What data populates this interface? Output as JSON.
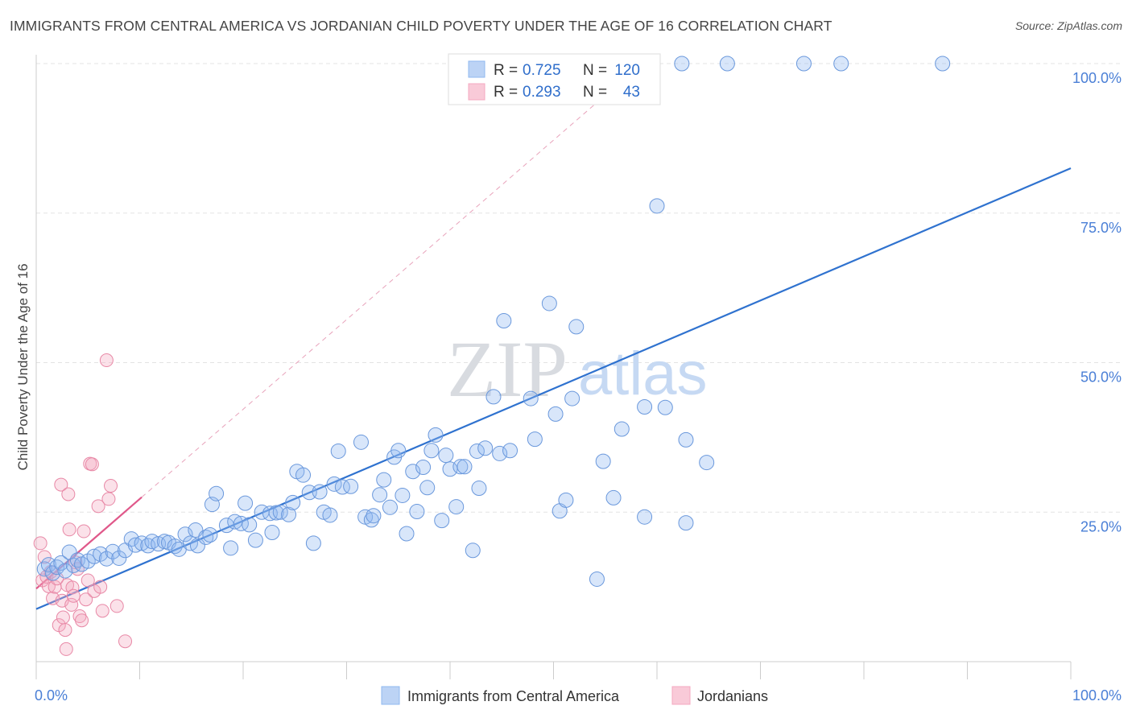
{
  "title": "IMMIGRANTS FROM CENTRAL AMERICA VS JORDANIAN CHILD POVERTY UNDER THE AGE OF 16 CORRELATION CHART",
  "source": "Source: ZipAtlas.com",
  "watermark": {
    "zip": "ZIP",
    "atlas": "atlas"
  },
  "legend": {
    "r_label": "R =",
    "n_label": "N =",
    "rows": [
      {
        "name": "Immigrants from Central America",
        "r": "0.725",
        "n": "120",
        "color": "#8fb8f0"
      },
      {
        "name": "Jordanians",
        "r": "0.293",
        "n": "43",
        "color": "#f4a8c0"
      }
    ]
  },
  "chart_data": {
    "type": "scatter",
    "title": "IMMIGRANTS FROM CENTRAL AMERICA VS JORDANIAN CHILD POVERTY UNDER THE AGE OF 16 CORRELATION CHART",
    "xlabel": "",
    "ylabel": "Child Poverty Under the Age of 16",
    "xlim": [
      0,
      100
    ],
    "ylim": [
      0,
      100
    ],
    "x_tick_labels": [
      {
        "value": 0,
        "label": "0.0%"
      },
      {
        "value": 100,
        "label": "100.0%"
      }
    ],
    "y_tick_labels": [
      {
        "value": 25,
        "label": "25.0%"
      },
      {
        "value": 50,
        "label": "50.0%"
      },
      {
        "value": 75,
        "label": "75.0%"
      },
      {
        "value": 100,
        "label": "100.0%"
      }
    ],
    "grid": true,
    "series": [
      {
        "name": "Immigrants from Central America",
        "color": "#8fb8f0",
        "stroke": "#6a98dc",
        "trend": {
          "x": [
            0,
            100
          ],
          "y": [
            8.8,
            82.5
          ],
          "color": "#2f72cf",
          "dashed_extension_to": [
            54,
            100
          ]
        },
        "points": [
          [
            0.8,
            15.5
          ],
          [
            1.2,
            16.2
          ],
          [
            1.6,
            14.8
          ],
          [
            2.0,
            15.8
          ],
          [
            2.4,
            16.5
          ],
          [
            2.8,
            15.2
          ],
          [
            3.2,
            18.3
          ],
          [
            3.6,
            16.1
          ],
          [
            4.0,
            17.0
          ],
          [
            4.4,
            16.3
          ],
          [
            5.0,
            16.8
          ],
          [
            5.6,
            17.6
          ],
          [
            6.2,
            18.0
          ],
          [
            6.8,
            17.2
          ],
          [
            7.4,
            18.4
          ],
          [
            8.0,
            17.3
          ],
          [
            8.6,
            18.6
          ],
          [
            9.2,
            20.5
          ],
          [
            9.6,
            19.5
          ],
          [
            10.2,
            19.8
          ],
          [
            10.8,
            19.4
          ],
          [
            11.2,
            20.1
          ],
          [
            11.8,
            19.7
          ],
          [
            12.4,
            20.1
          ],
          [
            12.8,
            19.9
          ],
          [
            13.4,
            19.3
          ],
          [
            13.8,
            18.8
          ],
          [
            14.4,
            21.3
          ],
          [
            14.9,
            19.8
          ],
          [
            15.4,
            22.0
          ],
          [
            15.6,
            19.4
          ],
          [
            16.4,
            20.8
          ],
          [
            16.8,
            21.2
          ],
          [
            17.0,
            26.3
          ],
          [
            17.4,
            28.1
          ],
          [
            18.4,
            22.8
          ],
          [
            18.8,
            19.0
          ],
          [
            19.2,
            23.4
          ],
          [
            19.8,
            23.1
          ],
          [
            20.2,
            26.5
          ],
          [
            20.6,
            22.9
          ],
          [
            21.2,
            20.3
          ],
          [
            21.8,
            25.0
          ],
          [
            22.6,
            24.8
          ],
          [
            22.8,
            21.6
          ],
          [
            23.2,
            24.9
          ],
          [
            23.6,
            25.0
          ],
          [
            24.4,
            24.6
          ],
          [
            24.8,
            26.6
          ],
          [
            25.2,
            31.8
          ],
          [
            25.8,
            31.2
          ],
          [
            26.4,
            28.3
          ],
          [
            26.8,
            19.8
          ],
          [
            27.4,
            28.4
          ],
          [
            27.8,
            25.0
          ],
          [
            28.4,
            24.5
          ],
          [
            28.8,
            29.7
          ],
          [
            29.2,
            35.2
          ],
          [
            29.6,
            29.2
          ],
          [
            30.4,
            29.3
          ],
          [
            31.4,
            36.7
          ],
          [
            31.8,
            24.2
          ],
          [
            32.4,
            23.7
          ],
          [
            32.6,
            24.4
          ],
          [
            33.2,
            27.9
          ],
          [
            33.6,
            30.4
          ],
          [
            34.2,
            25.8
          ],
          [
            34.6,
            34.2
          ],
          [
            35.0,
            35.3
          ],
          [
            35.4,
            27.8
          ],
          [
            35.8,
            21.4
          ],
          [
            36.4,
            31.8
          ],
          [
            36.8,
            25.1
          ],
          [
            37.4,
            32.5
          ],
          [
            37.8,
            29.1
          ],
          [
            38.2,
            35.3
          ],
          [
            38.6,
            37.9
          ],
          [
            39.2,
            23.6
          ],
          [
            39.6,
            34.5
          ],
          [
            40.0,
            32.2
          ],
          [
            40.6,
            25.9
          ],
          [
            41.0,
            32.6
          ],
          [
            41.4,
            32.6
          ],
          [
            42.2,
            18.6
          ],
          [
            42.6,
            35.2
          ],
          [
            42.8,
            29.0
          ],
          [
            43.4,
            35.7
          ],
          [
            44.2,
            44.3
          ],
          [
            44.8,
            34.8
          ],
          [
            45.2,
            57.0
          ],
          [
            45.8,
            35.3
          ],
          [
            47.8,
            44.0
          ],
          [
            48.2,
            37.2
          ],
          [
            49.6,
            59.9
          ],
          [
            50.2,
            41.4
          ],
          [
            50.6,
            25.2
          ],
          [
            51.2,
            27.0
          ],
          [
            51.8,
            44.0
          ],
          [
            52.2,
            56.0
          ],
          [
            54.2,
            13.8
          ],
          [
            54.8,
            33.5
          ],
          [
            55.8,
            27.4
          ],
          [
            56.6,
            38.9
          ],
          [
            58.8,
            42.6
          ],
          [
            58.8,
            24.2
          ],
          [
            60.0,
            76.2
          ],
          [
            60.8,
            42.5
          ],
          [
            62.8,
            23.2
          ],
          [
            62.8,
            37.1
          ],
          [
            64.8,
            33.3
          ],
          [
            62.4,
            100.0
          ],
          [
            66.8,
            100.0
          ],
          [
            74.2,
            100.0
          ],
          [
            77.8,
            100.0
          ],
          [
            87.6,
            100.0
          ]
        ]
      },
      {
        "name": "Jordanians",
        "color": "#f4a8c0",
        "stroke": "#e888a6",
        "trend": {
          "x": [
            0,
            10.2
          ],
          "y": [
            12.2,
            27.5
          ],
          "color": "#e0588a"
        },
        "points": [
          [
            0.4,
            19.8
          ],
          [
            0.6,
            13.6
          ],
          [
            0.8,
            17.5
          ],
          [
            1.0,
            14.2
          ],
          [
            1.2,
            12.6
          ],
          [
            1.4,
            15.0
          ],
          [
            1.6,
            10.6
          ],
          [
            1.8,
            12.5
          ],
          [
            2.0,
            13.9
          ],
          [
            2.2,
            6.1
          ],
          [
            2.4,
            29.6
          ],
          [
            2.5,
            10.2
          ],
          [
            2.6,
            7.4
          ],
          [
            2.8,
            5.3
          ],
          [
            2.9,
            2.1
          ],
          [
            3.0,
            12.8
          ],
          [
            3.1,
            28.0
          ],
          [
            3.2,
            22.1
          ],
          [
            3.4,
            9.5
          ],
          [
            3.5,
            12.4
          ],
          [
            3.6,
            11.0
          ],
          [
            3.8,
            16.6
          ],
          [
            4.0,
            15.5
          ],
          [
            4.2,
            7.6
          ],
          [
            4.4,
            6.9
          ],
          [
            4.6,
            21.8
          ],
          [
            4.8,
            10.4
          ],
          [
            5.0,
            13.6
          ],
          [
            5.2,
            33.1
          ],
          [
            5.4,
            33.0
          ],
          [
            5.6,
            11.8
          ],
          [
            6.0,
            26.0
          ],
          [
            6.2,
            12.5
          ],
          [
            6.4,
            8.5
          ],
          [
            6.8,
            50.4
          ],
          [
            7.0,
            27.2
          ],
          [
            7.2,
            29.4
          ],
          [
            7.8,
            9.3
          ],
          [
            8.6,
            3.4
          ]
        ]
      }
    ]
  },
  "bottom_legend": [
    {
      "label": "Immigrants from Central America",
      "color": "#8fb8f0"
    },
    {
      "label": "Jordanians",
      "color": "#f4a8c0"
    }
  ]
}
